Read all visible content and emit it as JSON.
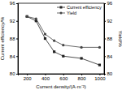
{
  "chart_data": {
    "type": "line",
    "xlabel": "Current density/(A·m⁻²)",
    "ylabel": "Current efficiency/%",
    "y2label": "Yield/%",
    "x": [
      200,
      300,
      400,
      500,
      600,
      800,
      1000
    ],
    "series": [
      {
        "name": "Current efficiency",
        "color": "#222222",
        "marker": "square",
        "values": [
          93,
          92,
          88,
          85,
          84,
          83.5,
          82
        ]
      },
      {
        "name": "Yield",
        "color": "#444444",
        "marker": "circle",
        "axis": "y2",
        "values": [
          93,
          92.5,
          89,
          87.5,
          86.5,
          86,
          86
        ]
      }
    ],
    "xlim": [
      100,
      1050
    ],
    "xticks": [
      200,
      400,
      600,
      800,
      1000
    ],
    "ylim": [
      80,
      96
    ],
    "yticks": [
      80,
      84,
      88,
      92,
      96
    ],
    "y2lim": [
      80,
      96
    ],
    "y2ticks": [
      80,
      84,
      88,
      92,
      96
    ],
    "legend": "upper right"
  }
}
